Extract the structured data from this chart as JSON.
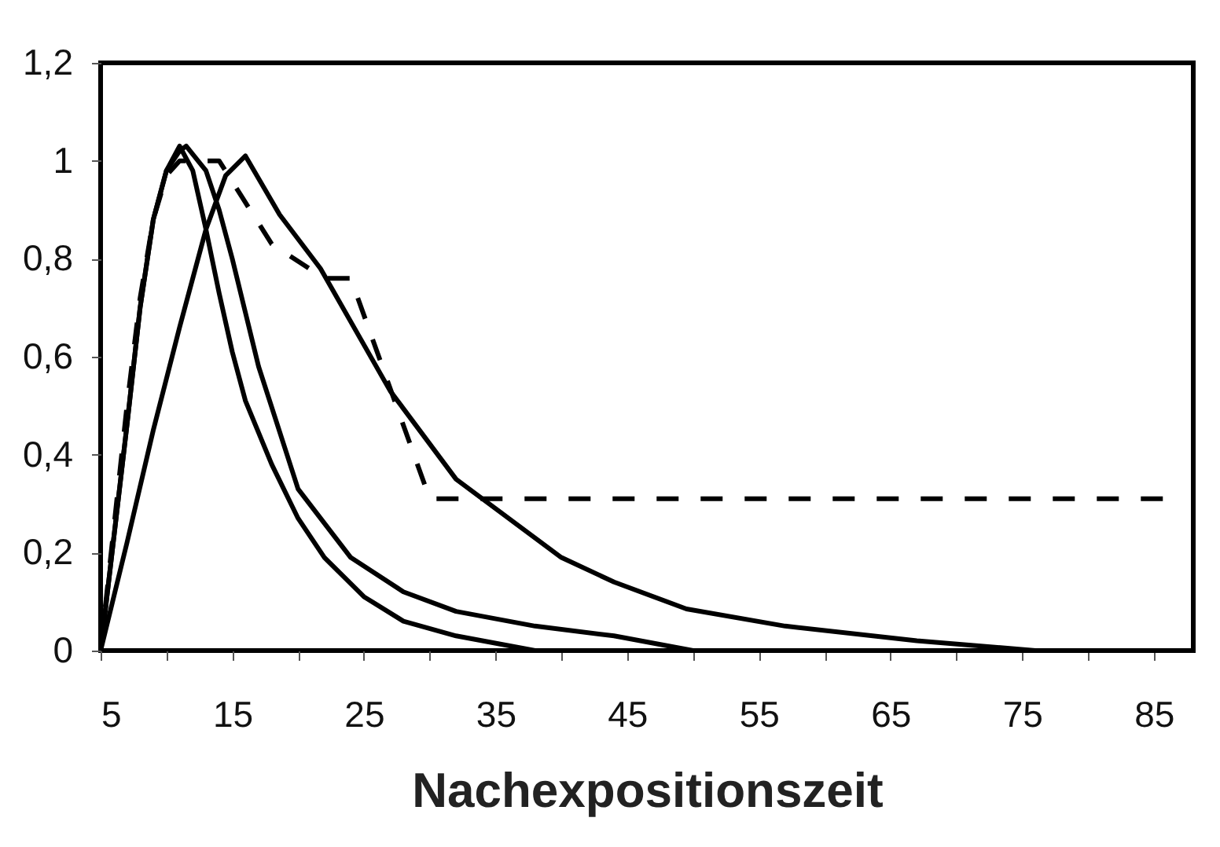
{
  "chart_data": {
    "type": "line",
    "xlabel": "Nachexpositionszeit",
    "xlim": [
      5,
      88
    ],
    "ylim": [
      0,
      1.2
    ],
    "xticks": [
      5,
      {
        "value": 10,
        "label": null
      },
      15,
      {
        "value": 20,
        "label": null
      },
      25,
      {
        "value": 30,
        "label": null
      },
      35,
      {
        "value": 40,
        "label": null
      },
      45,
      {
        "value": 50,
        "label": null
      },
      55,
      {
        "value": 60,
        "label": null
      },
      65,
      {
        "value": 70,
        "label": null
      },
      75,
      {
        "value": 80,
        "label": null
      },
      85
    ],
    "yticks": [
      0,
      {
        "value": 0.2,
        "label": "0,2"
      },
      {
        "value": 0.4,
        "label": "0,4"
      },
      {
        "value": 0.6,
        "label": "0,6"
      },
      {
        "value": 0.8,
        "label": "0,8"
      },
      1,
      {
        "value": 1.2,
        "label": "1,2"
      }
    ],
    "grid": false,
    "legend": false,
    "marker": "none",
    "series": [
      {
        "color": "#000000",
        "line_style": "solid",
        "x": [
          5,
          6,
          7,
          8,
          9,
          10,
          11,
          12,
          13,
          14,
          15,
          16,
          18,
          20,
          22,
          25,
          28,
          32,
          38,
          88
        ],
        "values": [
          0,
          0.23,
          0.46,
          0.7,
          0.88,
          0.98,
          1.03,
          0.98,
          0.86,
          0.73,
          0.61,
          0.51,
          0.38,
          0.27,
          0.19,
          0.11,
          0.06,
          0.03,
          0,
          0
        ]
      },
      {
        "color": "#000000",
        "line_style": "solid",
        "x": [
          5,
          6,
          7,
          8,
          9,
          10,
          11,
          11.5,
          13,
          14,
          15,
          16,
          17,
          20,
          24,
          28,
          32,
          38,
          44,
          50,
          88
        ],
        "values": [
          0,
          0.23,
          0.46,
          0.7,
          0.88,
          0.98,
          1.02,
          1.03,
          0.98,
          0.9,
          0.8,
          0.69,
          0.58,
          0.33,
          0.19,
          0.12,
          0.08,
          0.05,
          0.03,
          0,
          0
        ]
      },
      {
        "color": "#000000",
        "line_style": "solid",
        "x": [
          5,
          7,
          9,
          11,
          13,
          14.5,
          16,
          18.6,
          21.7,
          27,
          32,
          40,
          44,
          49.5,
          57,
          67,
          76,
          88
        ],
        "values": [
          0,
          0.22,
          0.45,
          0.66,
          0.86,
          0.97,
          1.01,
          0.89,
          0.78,
          0.53,
          0.35,
          0.19,
          0.14,
          0.085,
          0.05,
          0.02,
          0,
          0
        ]
      },
      {
        "color": "#000000",
        "line_style": "dashed",
        "x": [
          5,
          6,
          7,
          8,
          9,
          10,
          11,
          14,
          18,
          22,
          24,
          30,
          86
        ],
        "values": [
          0,
          0.25,
          0.5,
          0.72,
          0.88,
          0.97,
          1.0,
          1.0,
          0.83,
          0.76,
          0.76,
          0.31,
          0.31
        ]
      }
    ]
  }
}
